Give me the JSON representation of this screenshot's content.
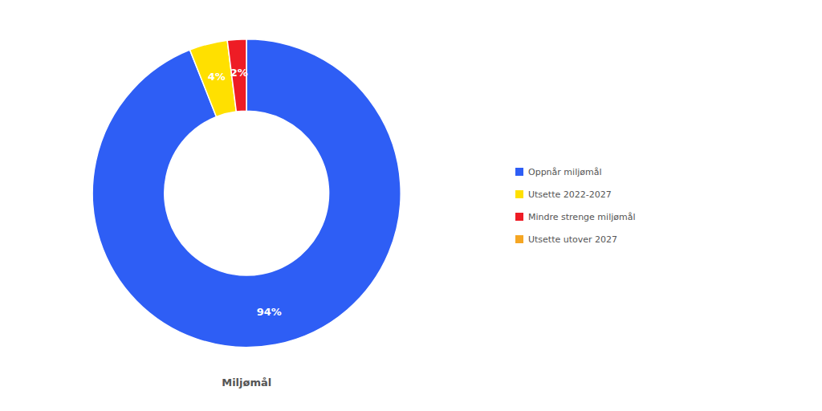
{
  "chart_data": {
    "type": "pie",
    "categories": [
      "Oppnår miljømål",
      "Utsette 2022-2027",
      "Mindre strenge miljømål",
      "Utsette utover 2027"
    ],
    "values": [
      94,
      4,
      2,
      0
    ],
    "value_labels": [
      "94%",
      "4%",
      "2%",
      null
    ],
    "colors": [
      "#2E5EF5",
      "#FFE000",
      "#EE1C25",
      "#F5A623"
    ],
    "data_labels": true,
    "xlabel": "Miljømål",
    "legend": "right"
  }
}
